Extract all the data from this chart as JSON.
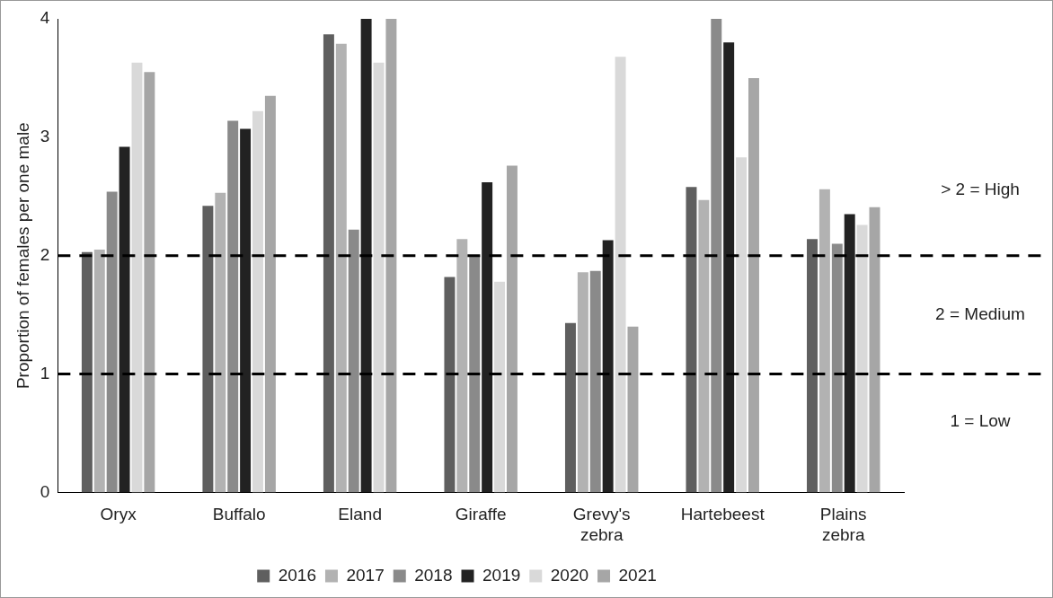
{
  "chart_data": {
    "type": "bar",
    "ylabel": "Proportion of females per one male",
    "categories": [
      "Oryx",
      "Buffalo",
      "Eland",
      "Giraffe",
      "Grevy's zebra",
      "Hartebeest",
      "Plains zebra"
    ],
    "series": [
      {
        "name": "2016",
        "color": "#5f5f5f",
        "values": [
          2.03,
          2.42,
          3.87,
          1.82,
          1.43,
          2.58,
          2.14
        ]
      },
      {
        "name": "2017",
        "color": "#b2b2b2",
        "values": [
          2.05,
          2.53,
          3.79,
          2.14,
          1.86,
          2.47,
          2.56
        ]
      },
      {
        "name": "2018",
        "color": "#8a8a8a",
        "values": [
          2.54,
          3.14,
          2.22,
          2.0,
          1.87,
          4.0,
          2.1
        ]
      },
      {
        "name": "2019",
        "color": "#222222",
        "values": [
          2.92,
          3.07,
          4.0,
          2.62,
          2.13,
          3.8,
          2.35
        ]
      },
      {
        "name": "2020",
        "color": "#d9d9d9",
        "values": [
          3.63,
          3.22,
          3.63,
          1.78,
          3.68,
          2.83,
          2.26
        ]
      },
      {
        "name": "2021",
        "color": "#a6a6a6",
        "values": [
          3.55,
          3.35,
          4.0,
          2.76,
          1.4,
          3.5,
          2.41
        ]
      }
    ],
    "ylim": [
      0,
      4
    ],
    "yticks": [
      0,
      1,
      2,
      3,
      4
    ],
    "grid": false,
    "legend": "bottom",
    "ref_lines": [
      {
        "axis": "y",
        "value": 2,
        "color": "#000000",
        "line_style": "dashed"
      },
      {
        "axis": "y",
        "value": 1,
        "color": "#000000",
        "line_style": "dashed"
      }
    ],
    "annotations": [
      "> 2 = High",
      "2 = Medium",
      "1 = Low"
    ]
  }
}
